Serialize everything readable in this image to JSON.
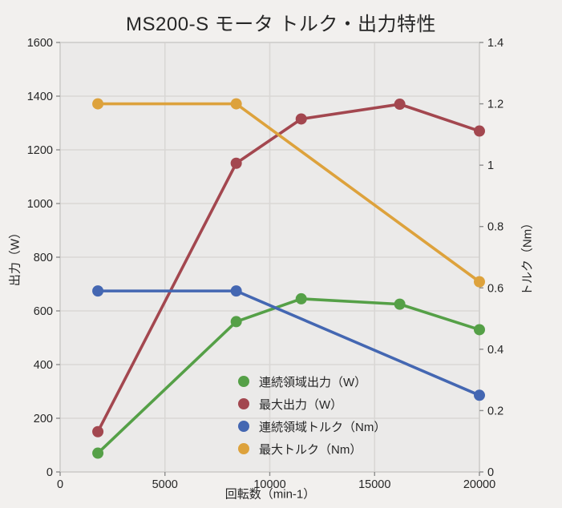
{
  "title": "MS200-S モータ トルク・出力特性",
  "colors": {
    "background": "#f2f0ee",
    "plot_background": "#ebeae9",
    "grid": "#d9d7d5",
    "frame": "#d1d0ce",
    "tick": "#8d8d8d",
    "text": "#262626",
    "series_green": "#55a047",
    "series_red": "#a3474f",
    "series_blue": "#4467b2",
    "series_orange": "#dda23c"
  },
  "chart_data": {
    "type": "line",
    "title": "MS200-S モータ トルク・出力特性",
    "xlabel": "回転数（min-1）",
    "ylabel_left": "出力（W）",
    "ylabel_right": "トルク（Nm）",
    "xlim": [
      0,
      20000
    ],
    "ylim_left": [
      0,
      1600
    ],
    "ylim_right": [
      0,
      1.4
    ],
    "xticks": [
      0,
      5000,
      10000,
      15000,
      20000
    ],
    "yticks_left": [
      0,
      200,
      400,
      600,
      800,
      1000,
      1200,
      1400,
      1600
    ],
    "yticks_right": [
      0,
      0.2,
      0.4,
      0.6,
      0.8,
      1.0,
      1.2,
      1.4
    ],
    "yticks_right_labels": [
      "0",
      "0.2",
      "0.4",
      "0.6",
      "0.8",
      "1",
      "1.2",
      "1.4"
    ],
    "grid": "horizontal lines at left-axis 200 W steps, vertical lines at 5000 min-1 steps",
    "legend_position": "inside lower-center",
    "marker": "circle",
    "series": [
      {
        "name": "連続領域出力（W）",
        "axis": "left",
        "color": "#55a047",
        "x": [
          1800,
          8400,
          11500,
          16200,
          20000
        ],
        "y": [
          70,
          560,
          645,
          625,
          530
        ]
      },
      {
        "name": "最大出力（W）",
        "axis": "left",
        "color": "#a3474f",
        "x": [
          1800,
          8400,
          11500,
          16200,
          20000
        ],
        "y": [
          150,
          1150,
          1315,
          1370,
          1270
        ]
      },
      {
        "name": "連続領域トルク（Nm）",
        "axis": "right",
        "color": "#4467b2",
        "x": [
          1800,
          8400,
          20000
        ],
        "y": [
          0.59,
          0.59,
          0.25
        ]
      },
      {
        "name": "最大トルク（Nm）",
        "axis": "right",
        "color": "#dda23c",
        "x": [
          1800,
          8400,
          20000
        ],
        "y": [
          1.2,
          1.2,
          0.62
        ]
      }
    ]
  }
}
